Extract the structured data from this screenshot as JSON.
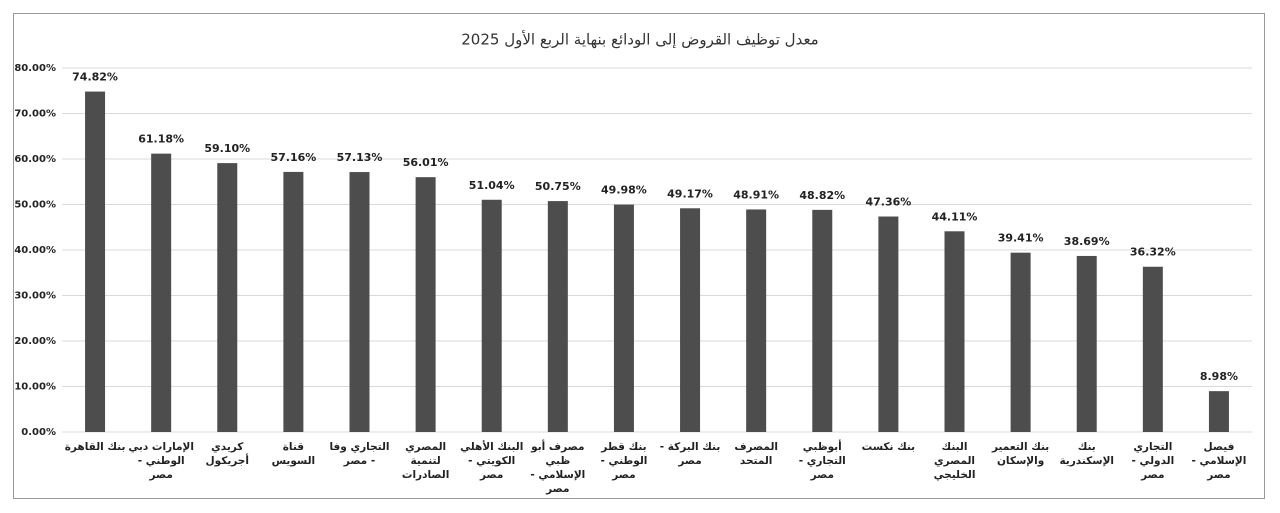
{
  "chart_data": {
    "type": "bar",
    "title": "معدل توظيف القروض إلى الودائع بنهاية الربع الأول 2025",
    "categories": [
      "بنك القاهرة",
      "الإمارات دبي الوطني - مصر",
      "كريدي أجريكول",
      "قناة السويس",
      "التجاري وفا - مصر",
      "المصري لتنمية الصادرات",
      "البنك الأهلي الكويتي - مصر",
      "مصرف أبو ظبي الإسلامي - مصر",
      "بنك قطر الوطني - مصر",
      "بنك البركة - مصر",
      "المصرف المتحد",
      "أبوظبي التجاري - مصر",
      "بنك نكست",
      "البنك المصري الخليجي",
      "بنك التعمير والإسكان",
      "بنك الإسكندرية",
      "التجاري الدولي - مصر",
      "فيصل الإسلامي - مصر"
    ],
    "values": [
      74.82,
      61.18,
      59.1,
      57.16,
      57.13,
      56.01,
      51.04,
      50.75,
      49.98,
      49.17,
      48.91,
      48.82,
      47.36,
      44.11,
      39.41,
      38.69,
      36.32,
      8.98
    ],
    "value_labels": [
      "74.82%",
      "61.18%",
      "59.10%",
      "57.16%",
      "57.13%",
      "56.01%",
      "51.04%",
      "50.75%",
      "49.98%",
      "49.17%",
      "48.91%",
      "48.82%",
      "47.36%",
      "44.11%",
      "39.41%",
      "38.69%",
      "36.32%",
      "8.98%"
    ],
    "color": "#4d4d4d",
    "ylim": [
      0,
      80
    ],
    "yticks": [
      {
        "value": 0,
        "label": "0.00%"
      },
      {
        "value": 10,
        "label": "10.00%"
      },
      {
        "value": 20,
        "label": "20.00%"
      },
      {
        "value": 30,
        "label": "30.00%"
      },
      {
        "value": 40,
        "label": "40.00%"
      },
      {
        "value": 50,
        "label": "50.00%"
      },
      {
        "value": 60,
        "label": "60.00%"
      },
      {
        "value": 70,
        "label": "70.00%"
      },
      {
        "value": 80,
        "label": "80.00%"
      }
    ],
    "grid": true
  }
}
